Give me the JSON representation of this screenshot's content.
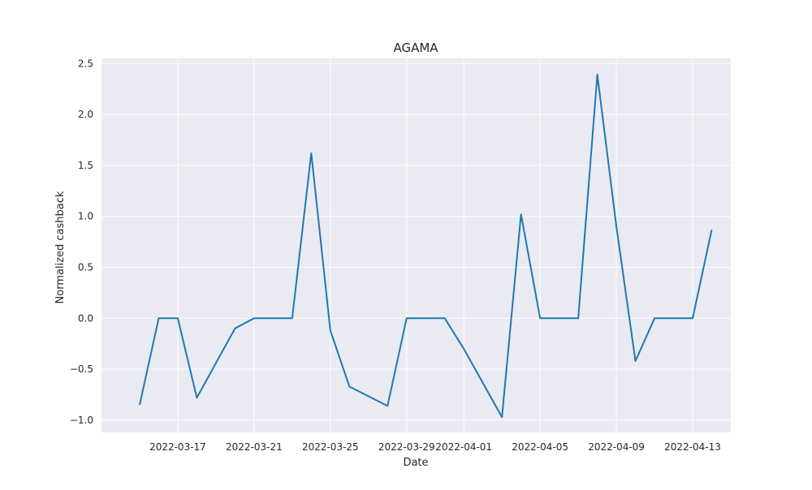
{
  "chart_data": {
    "type": "line",
    "title": "AGAMA",
    "xlabel": "Date",
    "ylabel": "Normalized cashback",
    "x_tick_labels": [
      "2022-03-17",
      "2022-03-21",
      "2022-03-25",
      "2022-03-29",
      "2022-04-01",
      "2022-04-05",
      "2022-04-09",
      "2022-04-13"
    ],
    "y_tick_labels": [
      "−1.0",
      "−0.5",
      "0.0",
      "0.5",
      "1.0",
      "1.5",
      "2.0",
      "2.5"
    ],
    "y_ticks": [
      -1.0,
      -0.5,
      0.0,
      0.5,
      1.0,
      1.5,
      2.0,
      2.5
    ],
    "xlim": [
      "2022-03-13",
      "2022-04-15"
    ],
    "ylim": [
      -1.12,
      2.55
    ],
    "grid": true,
    "background_color": "#eaeaf2",
    "series": [
      {
        "color": "#1f77b4",
        "x": [
          "2022-03-15",
          "2022-03-16",
          "2022-03-17",
          "2022-03-18",
          "2022-03-20",
          "2022-03-21",
          "2022-03-22",
          "2022-03-23",
          "2022-03-24",
          "2022-03-25",
          "2022-03-26",
          "2022-03-28",
          "2022-03-29",
          "2022-03-30",
          "2022-03-31",
          "2022-04-01",
          "2022-04-03",
          "2022-04-04",
          "2022-04-05",
          "2022-04-06",
          "2022-04-07",
          "2022-04-08",
          "2022-04-09",
          "2022-04-10",
          "2022-04-11",
          "2022-04-12",
          "2022-04-13",
          "2022-04-14"
        ],
        "y": [
          -0.85,
          0.0,
          0.0,
          -0.78,
          -0.1,
          0.0,
          0.0,
          0.0,
          1.62,
          -0.12,
          -0.67,
          -0.86,
          0.0,
          0.0,
          0.0,
          -0.3,
          -0.97,
          1.02,
          0.0,
          0.0,
          0.0,
          2.39,
          0.9,
          -0.42,
          0.0,
          0.0,
          0.0,
          0.87
        ]
      }
    ]
  }
}
